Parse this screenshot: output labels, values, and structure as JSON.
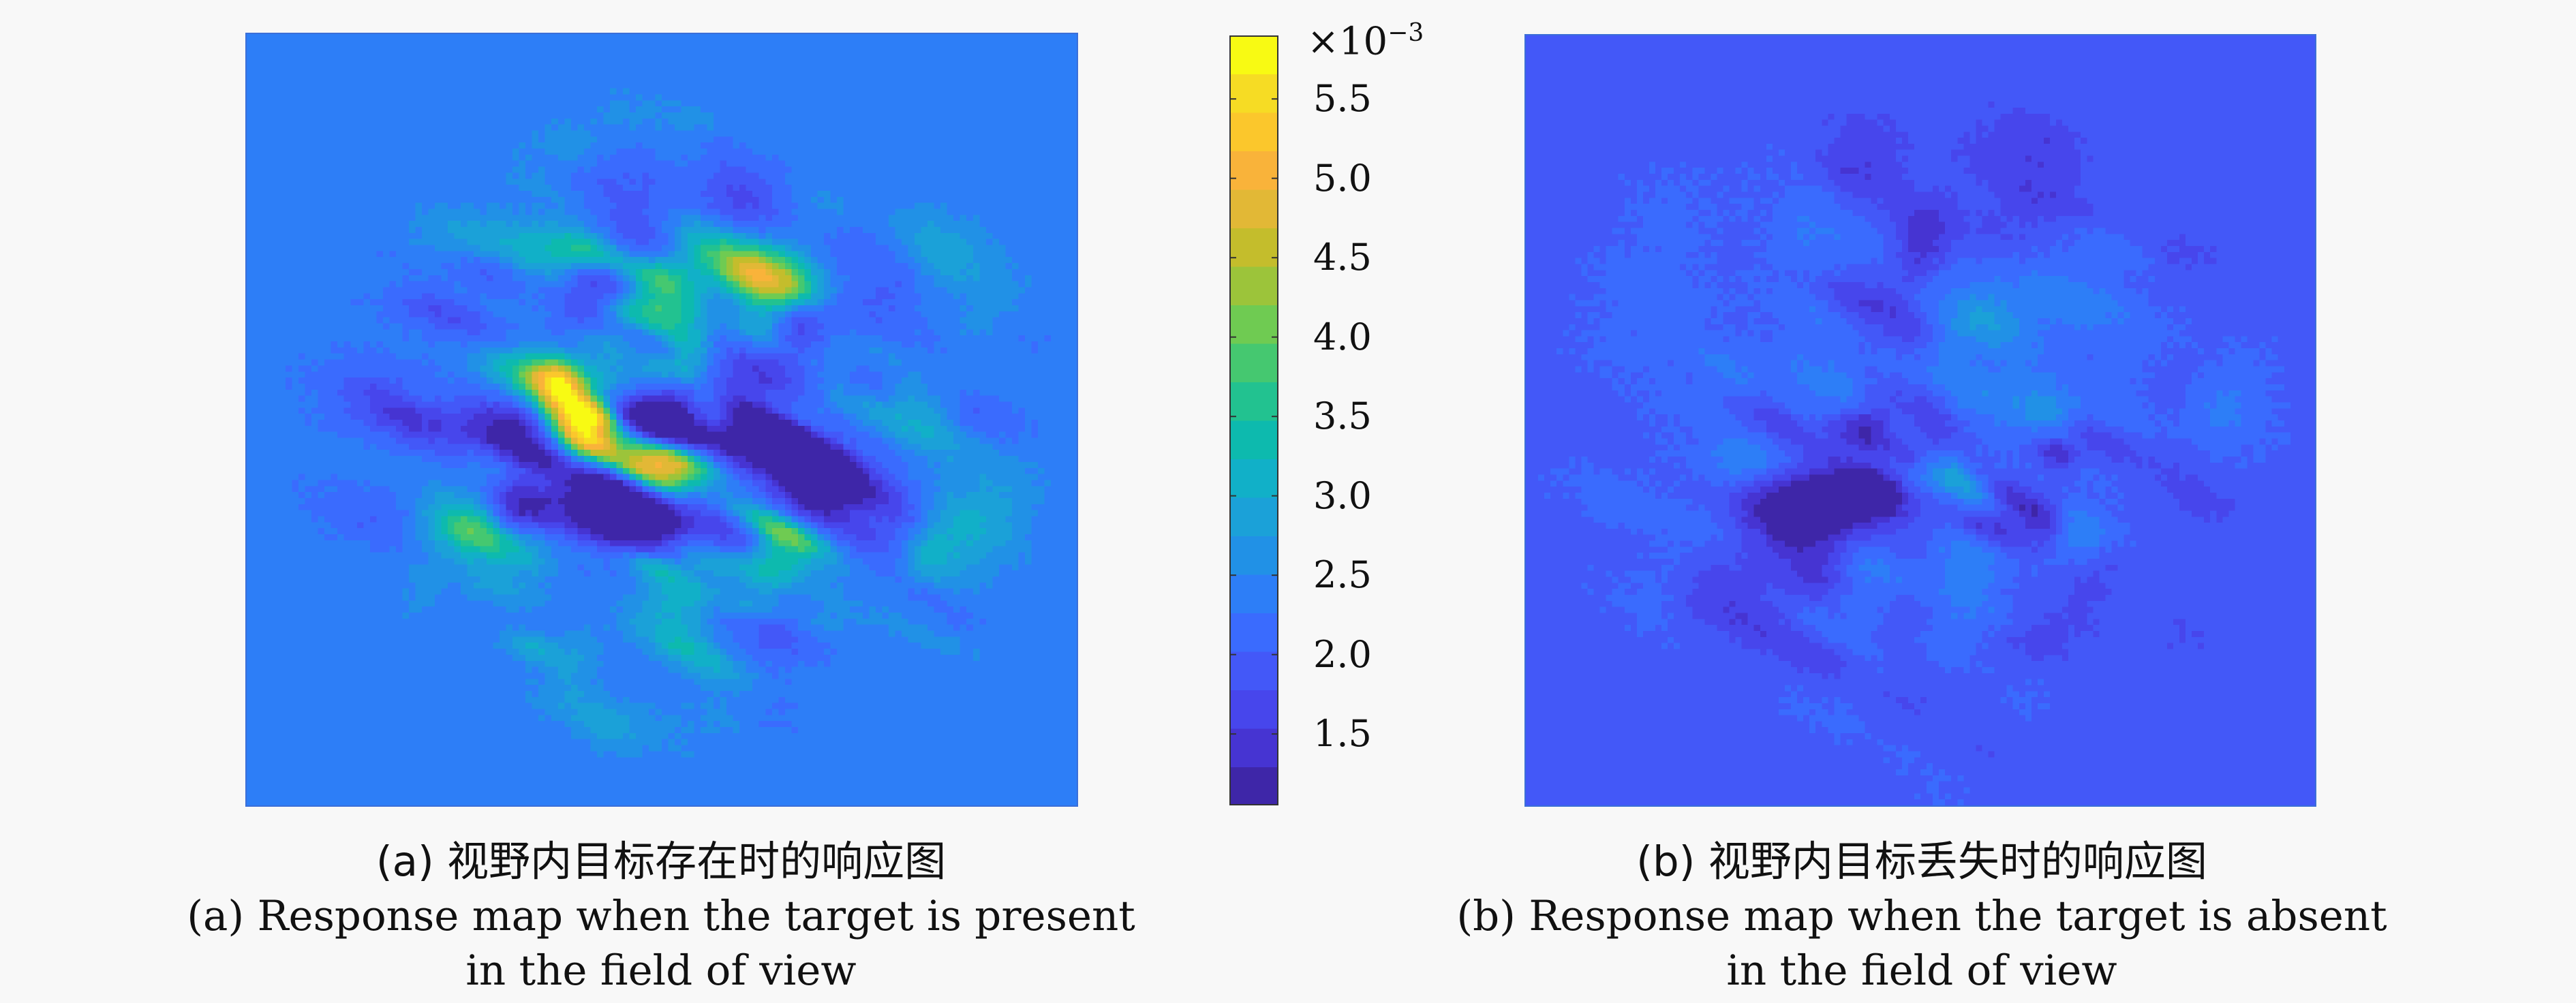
{
  "chart_data": [
    {
      "type": "heatmap",
      "panel": "a",
      "title": "",
      "colormap": "parula",
      "description_stats": {
        "background_value": 0.0023,
        "min": 0.0011,
        "max": 0.0058
      },
      "xlabel": "",
      "ylabel": ""
    },
    {
      "type": "heatmap",
      "panel": "b",
      "title": "",
      "colormap": "parula",
      "description_stats": {
        "background_value": 0.0019,
        "min": 0.0011,
        "max": 0.0027
      },
      "xlabel": "",
      "ylabel": ""
    }
  ],
  "colorbar": {
    "exponent_prefix": "×10",
    "exponent": "−3",
    "range": [
      1.05,
      5.9
    ],
    "ticks": [
      1.5,
      2.0,
      2.5,
      3.0,
      3.5,
      4.0,
      4.5,
      5.0,
      5.5
    ],
    "tick_labels": [
      "1.5",
      "2.0",
      "2.5",
      "3.0",
      "3.5",
      "4.0",
      "4.5",
      "5.0",
      "5.5"
    ],
    "colors": [
      "#3e26a8",
      "#4634d2",
      "#4746ec",
      "#4358f8",
      "#3a6bfe",
      "#2d7ef7",
      "#2191e6",
      "#1ba1d8",
      "#11b0c8",
      "#0dbaae",
      "#22c290",
      "#45c870",
      "#6fcb52",
      "#9cc43a",
      "#c4bd2c",
      "#e2b836",
      "#f9b33a",
      "#fbc72c",
      "#f6dc24",
      "#f8fa13"
    ]
  },
  "captions": {
    "a": {
      "cn": "(a) 视野内目标存在时的响应图",
      "en_line1": "(a) Response map when the target is present",
      "en_line2": "in the field of view"
    },
    "b": {
      "cn": "(b) 视野内目标丢失时的响应图",
      "en_line1": "(b) Response map when the target is absent",
      "en_line2": "in the field of view"
    }
  }
}
